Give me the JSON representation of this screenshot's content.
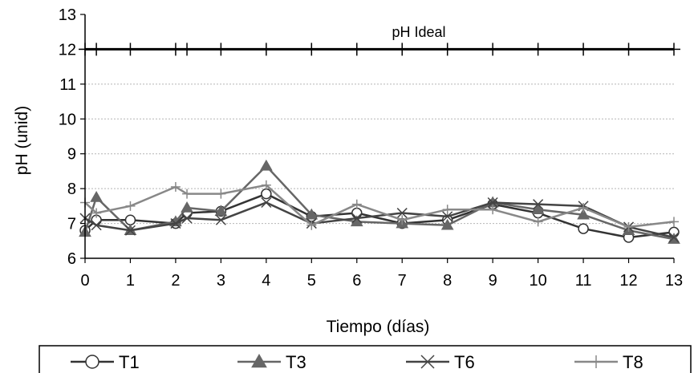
{
  "chart_data": {
    "type": "line",
    "title": "",
    "xlabel": "Tiempo (días)",
    "ylabel": "pH (unid)",
    "xlim": [
      0,
      13
    ],
    "ylim": [
      6,
      13
    ],
    "xticks": [
      "0",
      "1",
      "2",
      "3",
      "4",
      "5",
      "6",
      "7",
      "8",
      "9",
      "10",
      "11",
      "12",
      "13"
    ],
    "yticks": [
      "6",
      "7",
      "8",
      "9",
      "10",
      "11",
      "12",
      "13"
    ],
    "grid": true,
    "legend_position": "bottom",
    "annotation": {
      "label": "pH Ideal",
      "x": [
        0,
        0.25,
        1,
        2,
        2.25,
        3,
        4,
        5,
        6,
        7,
        8,
        9,
        10,
        11,
        12,
        13
      ],
      "y": 12
    },
    "series": [
      {
        "name": "T1",
        "marker": "circle-open",
        "color": "#333333",
        "x": [
          0,
          0.25,
          1,
          2,
          2.25,
          3,
          4,
          5,
          6,
          7,
          8,
          9,
          10,
          11,
          12,
          13
        ],
        "y": [
          6.8,
          7.1,
          7.1,
          7.0,
          7.3,
          7.35,
          7.85,
          7.2,
          7.3,
          7.0,
          7.1,
          7.55,
          7.3,
          6.85,
          6.6,
          6.75
        ]
      },
      {
        "name": "T3",
        "marker": "triangle-filled",
        "color": "#666666",
        "x": [
          0,
          0.25,
          1,
          2,
          2.25,
          3,
          4,
          5,
          6,
          7,
          8,
          9,
          10,
          11,
          12,
          13
        ],
        "y": [
          6.75,
          7.75,
          6.8,
          7.05,
          7.45,
          7.35,
          8.65,
          7.25,
          7.05,
          7.0,
          6.95,
          7.6,
          7.4,
          7.25,
          6.8,
          6.55
        ]
      },
      {
        "name": "T6",
        "marker": "x",
        "color": "#444444",
        "x": [
          0,
          0.25,
          1,
          2,
          2.25,
          3,
          4,
          5,
          6,
          7,
          8,
          9,
          10,
          11,
          12,
          13
        ],
        "y": [
          7.15,
          6.95,
          6.8,
          7.0,
          7.15,
          7.1,
          7.6,
          7.0,
          7.15,
          7.3,
          7.2,
          7.6,
          7.55,
          7.5,
          6.9,
          6.6
        ]
      },
      {
        "name": "T8",
        "marker": "plus",
        "color": "#888888",
        "x": [
          0,
          0.25,
          1,
          2,
          2.25,
          3,
          4,
          5,
          6,
          7,
          8,
          9,
          10,
          11,
          12,
          13
        ],
        "y": [
          7.6,
          7.3,
          7.5,
          8.05,
          7.85,
          7.85,
          8.1,
          6.95,
          7.55,
          7.1,
          7.4,
          7.4,
          7.05,
          7.45,
          6.9,
          7.05
        ]
      }
    ]
  }
}
